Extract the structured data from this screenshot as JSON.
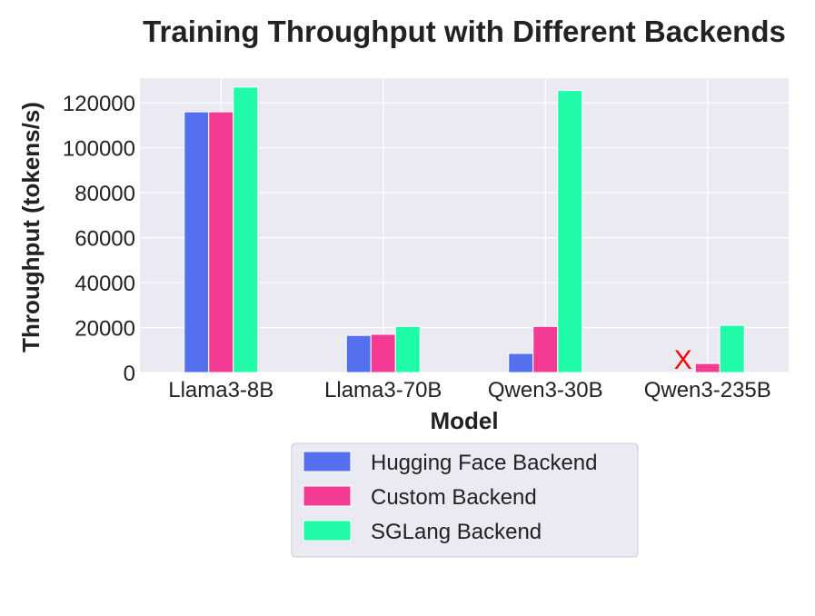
{
  "chart_data": {
    "type": "bar",
    "title": "Training Throughput with Different Backends",
    "xlabel": "Model",
    "ylabel": "Throughput (tokens/s)",
    "categories": [
      "Llama3-8B",
      "Llama3-70B",
      "Qwen3-30B",
      "Qwen3-235B"
    ],
    "series": [
      {
        "name": "Hugging Face Backend",
        "color": "#5470ee",
        "values": [
          116000,
          16500,
          8500,
          null
        ]
      },
      {
        "name": "Custom Backend",
        "color": "#f43b93",
        "values": [
          116000,
          17000,
          20500,
          4000
        ]
      },
      {
        "name": "SGLang Backend",
        "color": "#1ffba6",
        "values": [
          127000,
          20500,
          125500,
          21000
        ]
      }
    ],
    "yticks": [
      0,
      20000,
      40000,
      60000,
      80000,
      100000,
      120000
    ],
    "ylim": [
      0,
      131000
    ],
    "grid": true,
    "legend_position": "bottom",
    "annotations": [
      {
        "text": "X",
        "category": "Qwen3-235B",
        "series": "Hugging Face Backend",
        "color": "#ff0000"
      }
    ]
  }
}
